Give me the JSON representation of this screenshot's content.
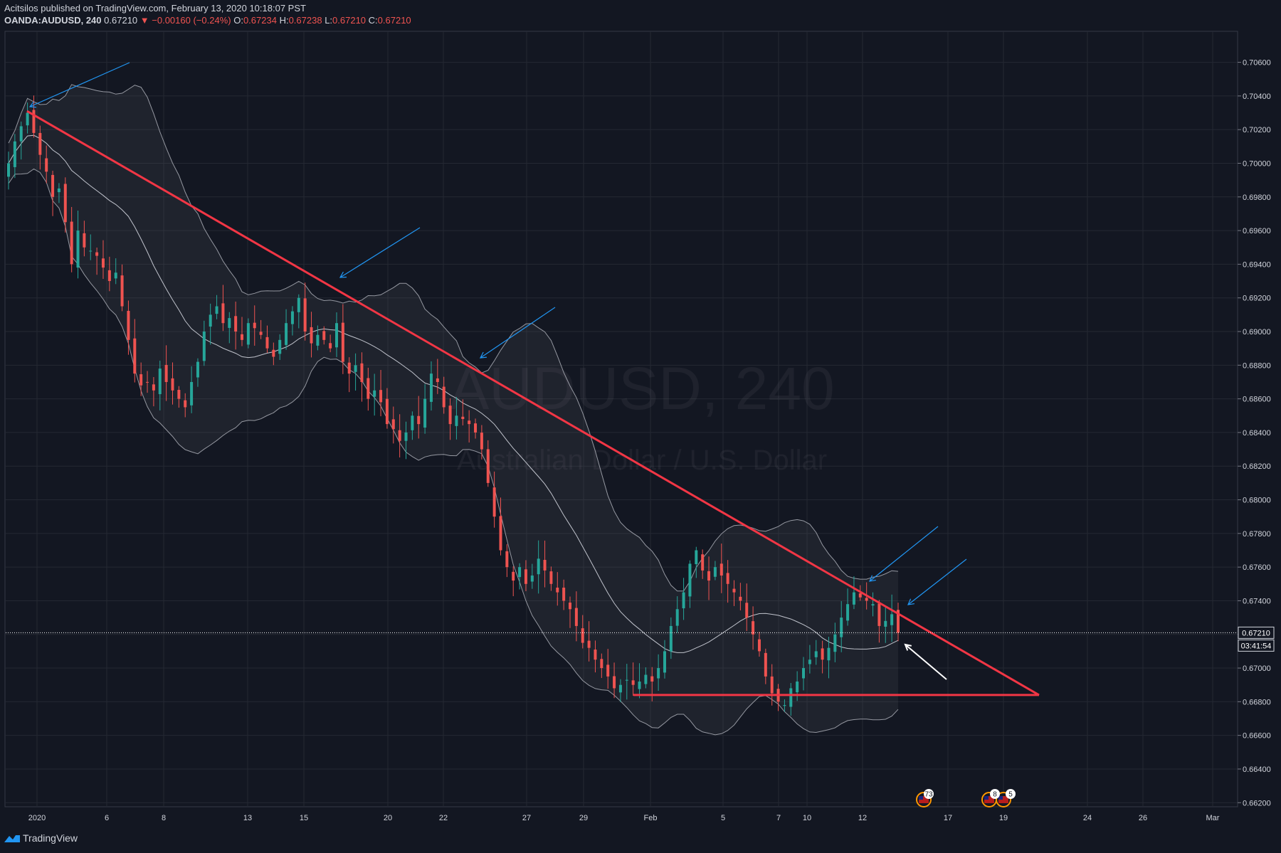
{
  "header": {
    "publisher": "Acitsilos published on TradingView.com, February 13, 2020 10:18:07 PST",
    "symbol": "OANDA:AUDUSD, 240",
    "last": "0.67210",
    "change": "▼ −0.00160 (−0.24%)",
    "o_label": "O:",
    "o_value": "0.67234",
    "h_label": "H:",
    "h_value": "0.67238",
    "l_label": "L:",
    "l_value": "0.67210",
    "c_label": "C:",
    "c_value": "0.67210"
  },
  "footer": {
    "brand": "TradingView"
  },
  "chart_data": {
    "type": "candlestick",
    "watermark": {
      "title": "AUDUSD, 240",
      "subtitle": "Australian Dollar / U.S. Dollar"
    },
    "y_range": [
      0.6618,
      0.7078
    ],
    "y_ticks": [
      "0.70600",
      "0.70400",
      "0.70200",
      "0.70000",
      "0.69800",
      "0.69600",
      "0.69400",
      "0.69200",
      "0.69000",
      "0.68800",
      "0.68600",
      "0.68400",
      "0.68200",
      "0.68000",
      "0.67800",
      "0.67600",
      "0.67400",
      "0.67200",
      "0.67000",
      "0.66800",
      "0.66600",
      "0.66400",
      "0.66200"
    ],
    "x_ticks": [
      "2020",
      "6",
      "8",
      "13",
      "15",
      "20",
      "22",
      "27",
      "29",
      "Feb",
      "5",
      "7",
      "10",
      "12",
      "17",
      "19",
      "24",
      "26",
      "Mar"
    ],
    "current_price": "0.67210",
    "countdown": "03:41:54",
    "colors": {
      "up": "#26a69a",
      "down": "#ef5350",
      "trendline": "#f23645",
      "arrow": "#2196f3",
      "band": "#9598a1"
    },
    "indicator": "Bollinger Bands",
    "trendlines": [
      {
        "name": "descending resistance",
        "from": [
          "2020-01-01",
          0.7031
        ],
        "to": [
          "2020-02-20",
          0.6684
        ]
      },
      {
        "name": "horizontal support",
        "from": [
          "2020-01-31",
          0.6684
        ],
        "to": [
          "2020-02-20",
          0.6684
        ]
      }
    ],
    "events": [
      {
        "position": "Feb 14",
        "count": "73"
      },
      {
        "position": "Feb 18",
        "counts": [
          "8",
          "5"
        ]
      }
    ],
    "close_path": [
      0.7,
      0.7013,
      0.7022,
      0.703,
      0.7018,
      0.7005,
      0.6995,
      0.698,
      0.6985,
      0.6965,
      0.694,
      0.696,
      0.695,
      0.6948,
      0.6945,
      0.6938,
      0.693,
      0.6935,
      0.6915,
      0.6895,
      0.6875,
      0.6868,
      0.687,
      0.6865,
      0.6878,
      0.687,
      0.6865,
      0.686,
      0.6855,
      0.687,
      0.6882,
      0.69,
      0.691,
      0.6915,
      0.6905,
      0.6908,
      0.69,
      0.6895,
      0.6905,
      0.6902,
      0.6898,
      0.689,
      0.6885,
      0.6895,
      0.6905,
      0.6912,
      0.692,
      0.69,
      0.6893,
      0.6898,
      0.6895,
      0.689,
      0.6905,
      0.6882,
      0.6875,
      0.688,
      0.687,
      0.686,
      0.6865,
      0.6858,
      0.6845,
      0.6842,
      0.6835,
      0.684,
      0.685,
      0.6845,
      0.686,
      0.6875,
      0.687,
      0.6855,
      0.6845,
      0.685,
      0.6848,
      0.6845,
      0.684,
      0.683,
      0.681,
      0.679,
      0.677,
      0.676,
      0.6752,
      0.676,
      0.675,
      0.6755,
      0.6765,
      0.6758,
      0.675,
      0.6745,
      0.674,
      0.6735,
      0.6725,
      0.6715,
      0.6712,
      0.6705,
      0.67,
      0.6695,
      0.6688,
      0.669,
      0.6693,
      0.669,
      0.6692,
      0.6696,
      0.6692,
      0.67,
      0.671,
      0.6725,
      0.6735,
      0.6745,
      0.6762,
      0.677,
      0.6758,
      0.6752,
      0.676,
      0.6755,
      0.675,
      0.6745,
      0.674,
      0.673,
      0.672,
      0.671,
      0.6695,
      0.6685,
      0.668,
      0.6678,
      0.6688,
      0.6692,
      0.67,
      0.6705,
      0.671,
      0.6705,
      0.6712,
      0.672,
      0.673,
      0.6738,
      0.6745,
      0.6742,
      0.674,
      0.6738,
      0.6725,
      0.6728,
      0.6732,
      0.6721
    ]
  }
}
